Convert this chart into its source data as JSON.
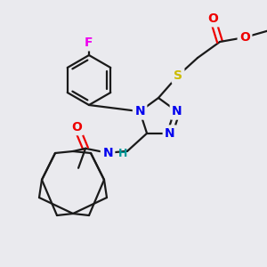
{
  "bg_color": "#eaeaee",
  "bond_color": "#1a1a1a",
  "bond_width": 1.6,
  "atom_colors": {
    "C": "#1a1a1a",
    "N": "#0000ee",
    "O": "#ee0000",
    "S": "#ccbb00",
    "F": "#ee00ee",
    "H": "#009999"
  },
  "font_size": 10
}
